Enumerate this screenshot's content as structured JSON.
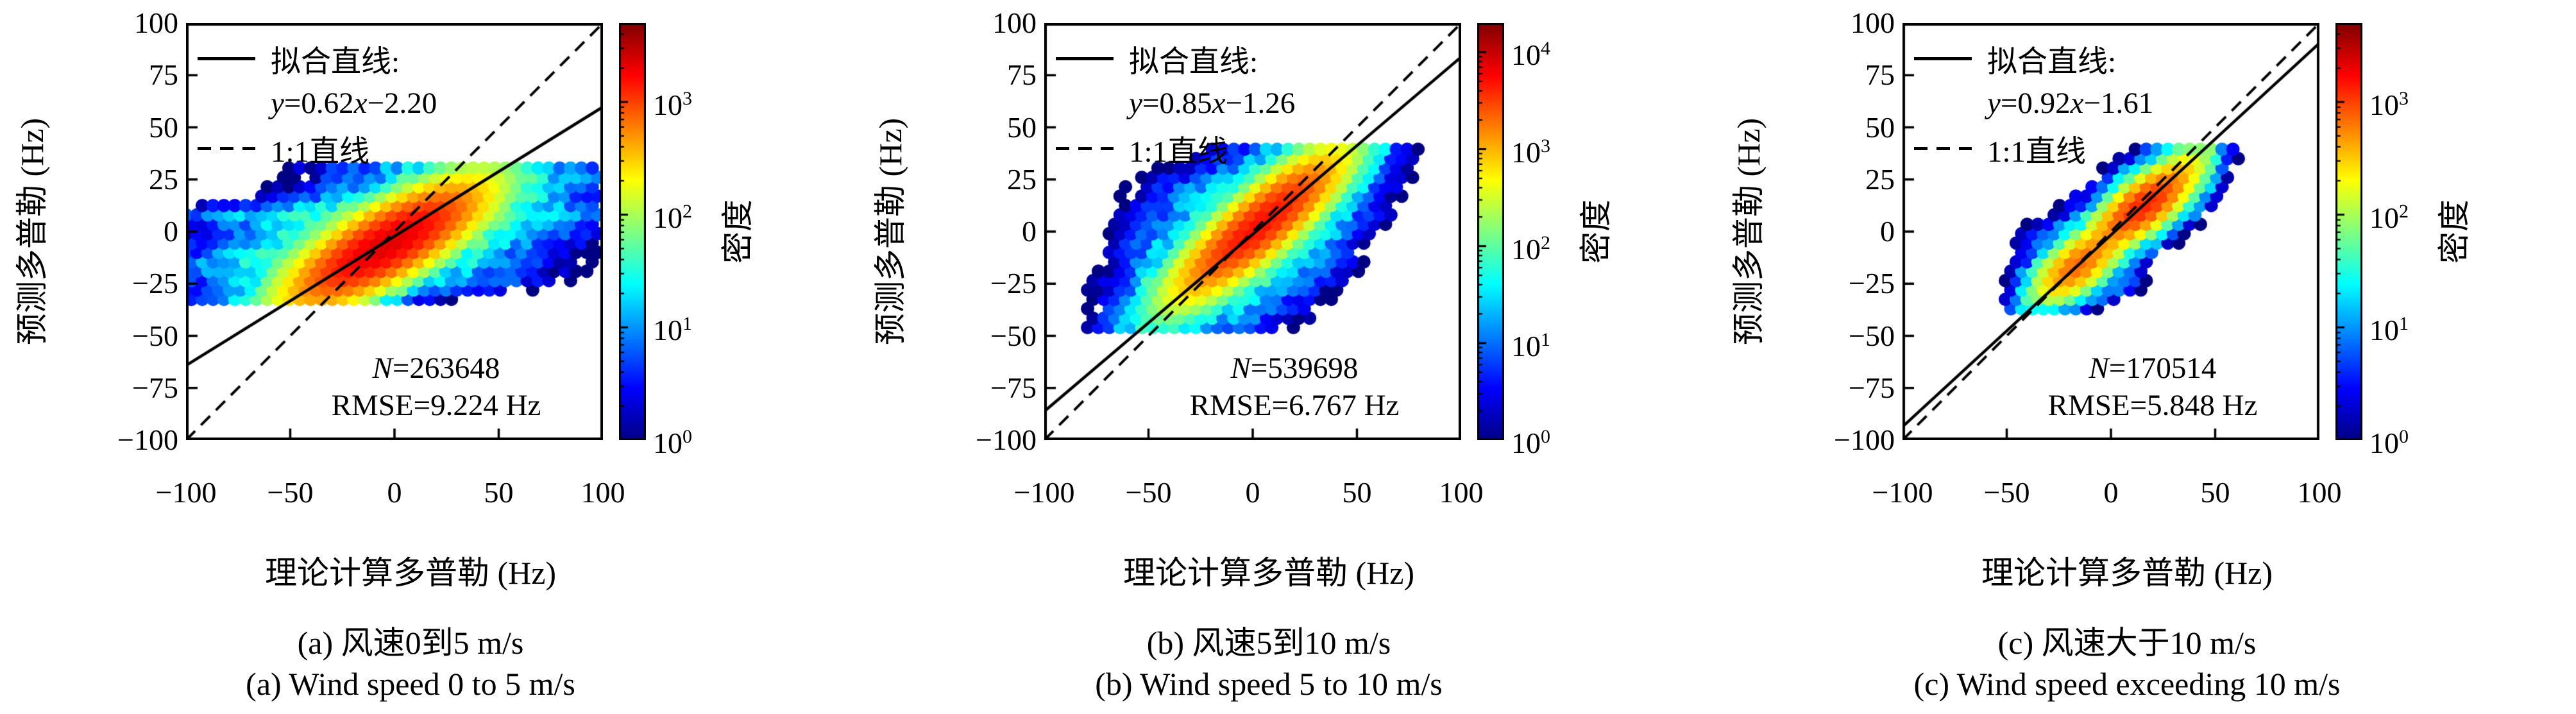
{
  "figure": {
    "panels": [
      {
        "id": "a",
        "ylabel": "预测多普勒 (Hz)",
        "xlabel": "理论计算多普勒 (Hz)",
        "legend": {
          "fit_label": "拟合直线:",
          "eq": {
            "y": "y",
            "mid": "=0.62",
            "x": "x",
            "tail": "−2.20"
          },
          "identity_label": "1:1直线"
        },
        "stats": {
          "n_label": "N",
          "n_value": "=263648",
          "rmse": "RMSE=9.224 Hz"
        },
        "colorbar_label": "密度",
        "caption_zh": "(a) 风速0到5 m/s",
        "caption_en": "(a) Wind speed 0 to 5 m/s"
      },
      {
        "id": "b",
        "ylabel": "预测多普勒 (Hz)",
        "xlabel": "理论计算多普勒 (Hz)",
        "legend": {
          "fit_label": "拟合直线:",
          "eq": {
            "y": "y",
            "mid": "=0.85",
            "x": "x",
            "tail": "−1.26"
          },
          "identity_label": "1:1直线"
        },
        "stats": {
          "n_label": "N",
          "n_value": "=539698",
          "rmse": "RMSE=6.767 Hz"
        },
        "colorbar_label": "密度",
        "caption_zh": "(b) 风速5到10 m/s",
        "caption_en": "(b) Wind speed 5 to 10 m/s"
      },
      {
        "id": "c",
        "ylabel": "预测多普勒 (Hz)",
        "xlabel": "理论计算多普勒 (Hz)",
        "legend": {
          "fit_label": "拟合直线:",
          "eq": {
            "y": "y",
            "mid": "=0.92",
            "x": "x",
            "tail": "−1.61"
          },
          "identity_label": "1:1直线"
        },
        "stats": {
          "n_label": "N",
          "n_value": "=170514",
          "rmse": "RMSE=5.848 Hz"
        },
        "colorbar_label": "密度",
        "caption_zh": "(c) 风速大于10 m/s",
        "caption_en": "(c) Wind speed exceeding 10 m/s"
      }
    ]
  },
  "chart_data": [
    {
      "type": "hexbin",
      "title": "(a) Wind speed 0 to 5 m/s",
      "xlabel": "理论计算多普勒 (Hz)",
      "ylabel": "预测多普勒 (Hz)",
      "x_range": [
        -100,
        100
      ],
      "y_range": [
        -100,
        100
      ],
      "x_ticks": {
        "values": [
          -100,
          -50,
          0,
          50,
          100
        ],
        "labels": [
          "−100",
          "−50",
          "0",
          "50",
          "100"
        ]
      },
      "y_ticks": {
        "values": [
          100,
          75,
          50,
          25,
          0,
          -25,
          -50,
          -75,
          -100
        ],
        "labels": [
          "100",
          "75",
          "50",
          "25",
          "0",
          "−25",
          "−50",
          "−75",
          "−100"
        ]
      },
      "fit_line": {
        "slope": 0.62,
        "intercept": -2.2
      },
      "identity_line": {
        "slope": 1,
        "intercept": 0
      },
      "n": 263648,
      "rmse_hz": 9.224,
      "density_scale": "log10",
      "colorbar": {
        "tick_exponents": [
          0,
          1,
          2,
          3
        ],
        "max_exponent": 3.7
      },
      "hex_radius": 3.0,
      "y_clip": [
        -33,
        32.5
      ],
      "clusters": [
        {
          "cx": -4,
          "cy": -6,
          "sx": 26,
          "sy": 8,
          "rot": 30,
          "amp": 2200
        },
        {
          "cx": -2,
          "cy": -1,
          "sx": 40,
          "sy": 13,
          "rot": 14,
          "amp": 80
        },
        {
          "cx": 30,
          "cy": 29.5,
          "sx": 36,
          "sy": 2.3,
          "rot": 0,
          "amp": 9
        },
        {
          "cx": 72,
          "cy": 26,
          "sx": 22,
          "sy": 2.3,
          "rot": 0,
          "amp": 5
        },
        {
          "cx": -8,
          "cy": 8,
          "sx": 58,
          "sy": 2.7,
          "rot": 0,
          "amp": 16
        },
        {
          "cx": -18,
          "cy": -16,
          "sx": 45,
          "sy": 2.7,
          "rot": 0,
          "amp": 13
        },
        {
          "cx": 16,
          "cy": -24,
          "sx": 30,
          "sy": 2.5,
          "rot": 0,
          "amp": 8
        },
        {
          "cx": -72,
          "cy": -4,
          "sx": 17,
          "sy": 9,
          "rot": 0,
          "amp": 2.2
        },
        {
          "cx": 58,
          "cy": 3,
          "sx": 26,
          "sy": 13,
          "rot": 0,
          "amp": 2.6
        }
      ]
    },
    {
      "type": "hexbin",
      "title": "(b) Wind speed 5 to 10 m/s",
      "xlabel": "理论计算多普勒 (Hz)",
      "ylabel": "预测多普勒 (Hz)",
      "x_range": [
        -100,
        100
      ],
      "y_range": [
        -100,
        100
      ],
      "x_ticks": {
        "values": [
          -100,
          -50,
          0,
          50,
          100
        ],
        "labels": [
          "−100",
          "−50",
          "0",
          "50",
          "100"
        ]
      },
      "y_ticks": {
        "values": [
          100,
          75,
          50,
          25,
          0,
          -25,
          -50,
          -75,
          -100
        ],
        "labels": [
          "100",
          "75",
          "50",
          "25",
          "0",
          "−25",
          "−50",
          "−75",
          "−100"
        ]
      },
      "fit_line": {
        "slope": 0.85,
        "intercept": -1.26
      },
      "identity_line": {
        "slope": 1,
        "intercept": 0
      },
      "n": 539698,
      "rmse_hz": 6.767,
      "density_scale": "log10",
      "colorbar": {
        "tick_exponents": [
          0,
          1,
          2,
          3,
          4
        ],
        "max_exponent": 4.3
      },
      "hex_radius": 3.0,
      "y_clip": [
        -47,
        41
      ],
      "clusters": [
        {
          "cx": 3,
          "cy": 3,
          "sx": 24,
          "sy": 6.5,
          "rot": 40,
          "amp": 5000
        },
        {
          "cx": 0,
          "cy": 0,
          "sx": 30,
          "sy": 14,
          "rot": 38,
          "amp": 120
        },
        {
          "cx": -6,
          "cy": -8,
          "sx": 27,
          "sy": 19,
          "rot": 33,
          "amp": 12
        },
        {
          "cx": -47,
          "cy": 4,
          "sx": 10,
          "sy": 13,
          "rot": 0,
          "amp": 3.5
        },
        {
          "cx": -20,
          "cy": -30,
          "sx": 9,
          "sy": 6,
          "rot": 30,
          "amp": 20
        },
        {
          "cx": 20,
          "cy": 22,
          "sx": 12,
          "sy": 7,
          "rot": 36,
          "amp": 260
        },
        {
          "cx": -28,
          "cy": 20,
          "sx": 11,
          "sy": 6,
          "rot": 0,
          "amp": 4.5
        },
        {
          "cx": -2,
          "cy": -40,
          "sx": 5,
          "sy": 5,
          "rot": 0,
          "amp": 3
        }
      ]
    },
    {
      "type": "hexbin",
      "title": "(c) Wind speed exceeding 10 m/s",
      "xlabel": "理论计算多普勒 (Hz)",
      "ylabel": "预测多普勒 (Hz)",
      "x_range": [
        -100,
        100
      ],
      "y_range": [
        -100,
        100
      ],
      "x_ticks": {
        "values": [
          -100,
          -50,
          0,
          50,
          100
        ],
        "labels": [
          "−100",
          "−50",
          "0",
          "50",
          "100"
        ]
      },
      "y_ticks": {
        "values": [
          100,
          75,
          50,
          25,
          0,
          -25,
          -50,
          -75,
          -100
        ],
        "labels": [
          "100",
          "75",
          "50",
          "25",
          "0",
          "−25",
          "−50",
          "−75",
          "−100"
        ]
      },
      "fit_line": {
        "slope": 0.92,
        "intercept": -1.61
      },
      "identity_line": {
        "slope": 1,
        "intercept": 0
      },
      "n": 170514,
      "rmse_hz": 5.848,
      "density_scale": "log10",
      "colorbar": {
        "tick_exponents": [
          0,
          1,
          2,
          3
        ],
        "max_exponent": 3.7
      },
      "hex_radius": 3.0,
      "y_clip": [
        -40,
        40
      ],
      "clusters": [
        {
          "cx": -16,
          "cy": -16,
          "sx": 12,
          "sy": 5.5,
          "rot": 38,
          "amp": 700
        },
        {
          "cx": -14,
          "cy": -12,
          "sx": 15,
          "sy": 10,
          "rot": 30,
          "amp": 22
        },
        {
          "cx": 16,
          "cy": 13,
          "sx": 14,
          "sy": 5.5,
          "rot": 38,
          "amp": 1300
        },
        {
          "cx": 17,
          "cy": 15,
          "sx": 17,
          "sy": 9,
          "rot": 35,
          "amp": 45
        },
        {
          "cx": 36,
          "cy": 31,
          "sx": 9,
          "sy": 4.5,
          "rot": 40,
          "amp": 110
        },
        {
          "cx": -3,
          "cy": -25,
          "sx": 9,
          "sy": 4,
          "rot": 0,
          "amp": 11
        },
        {
          "cx": -30,
          "cy": -4,
          "sx": 7,
          "sy": 6,
          "rot": 0,
          "amp": 3.5
        },
        {
          "cx": 33,
          "cy": 21,
          "sx": 7,
          "sy": 6,
          "rot": 0,
          "amp": 5
        },
        {
          "cx": -25,
          "cy": -28,
          "sx": 6,
          "sy": 5,
          "rot": 0,
          "amp": 4
        }
      ]
    }
  ]
}
